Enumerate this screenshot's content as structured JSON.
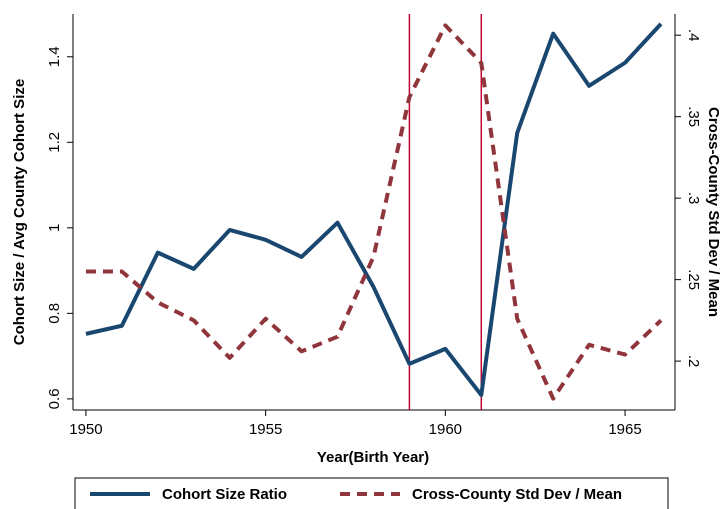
{
  "chart_data": {
    "type": "line",
    "x": [
      1950,
      1951,
      1952,
      1953,
      1954,
      1955,
      1956,
      1957,
      1958,
      1959,
      1960,
      1961,
      1962,
      1963,
      1964,
      1965,
      1966
    ],
    "xlabel": "Year(Birth Year)",
    "ylabel": "Cohort Size / Avg County Cohort Size",
    "y2label": "Cross-County Std Dev / Mean",
    "xlim": [
      1949.64,
      1966.39
    ],
    "xticks": [
      1950,
      1955,
      1960,
      1965
    ],
    "ylim": [
      0.574,
      1.5
    ],
    "yticks": [
      0.6,
      0.8,
      1,
      1.2,
      1.4
    ],
    "y2lim": [
      0.17,
      0.413
    ],
    "y2ticks": [
      {
        "value": 0.2,
        "label": ".2"
      },
      {
        "value": 0.25,
        "label": ".25"
      },
      {
        "value": 0.3,
        "label": ".3"
      },
      {
        "value": 0.35,
        "label": ".35"
      },
      {
        "value": 0.4,
        "label": ".4"
      }
    ],
    "vlines": [
      1959,
      1961
    ],
    "vline_color": "#c10534",
    "legend": "bottom",
    "series": [
      {
        "name": "Cohort Size Ratio",
        "color": "#1a476f",
        "dash": false,
        "values": [
          0.752,
          0.771,
          0.942,
          0.904,
          0.995,
          0.972,
          0.932,
          1.012,
          0.862,
          0.682,
          0.717,
          0.609,
          1.222,
          1.454,
          1.332,
          1.386,
          1.477
        ]
      },
      {
        "name": "Cross-County Std Dev / Mean",
        "color": "#90353b",
        "dash": true,
        "axis": "y2",
        "values": [
          0.255,
          0.255,
          0.236,
          0.225,
          0.202,
          0.226,
          0.206,
          0.215,
          0.264,
          0.362,
          0.406,
          0.383,
          0.226,
          0.177,
          0.21,
          0.204,
          0.225
        ]
      }
    ]
  }
}
